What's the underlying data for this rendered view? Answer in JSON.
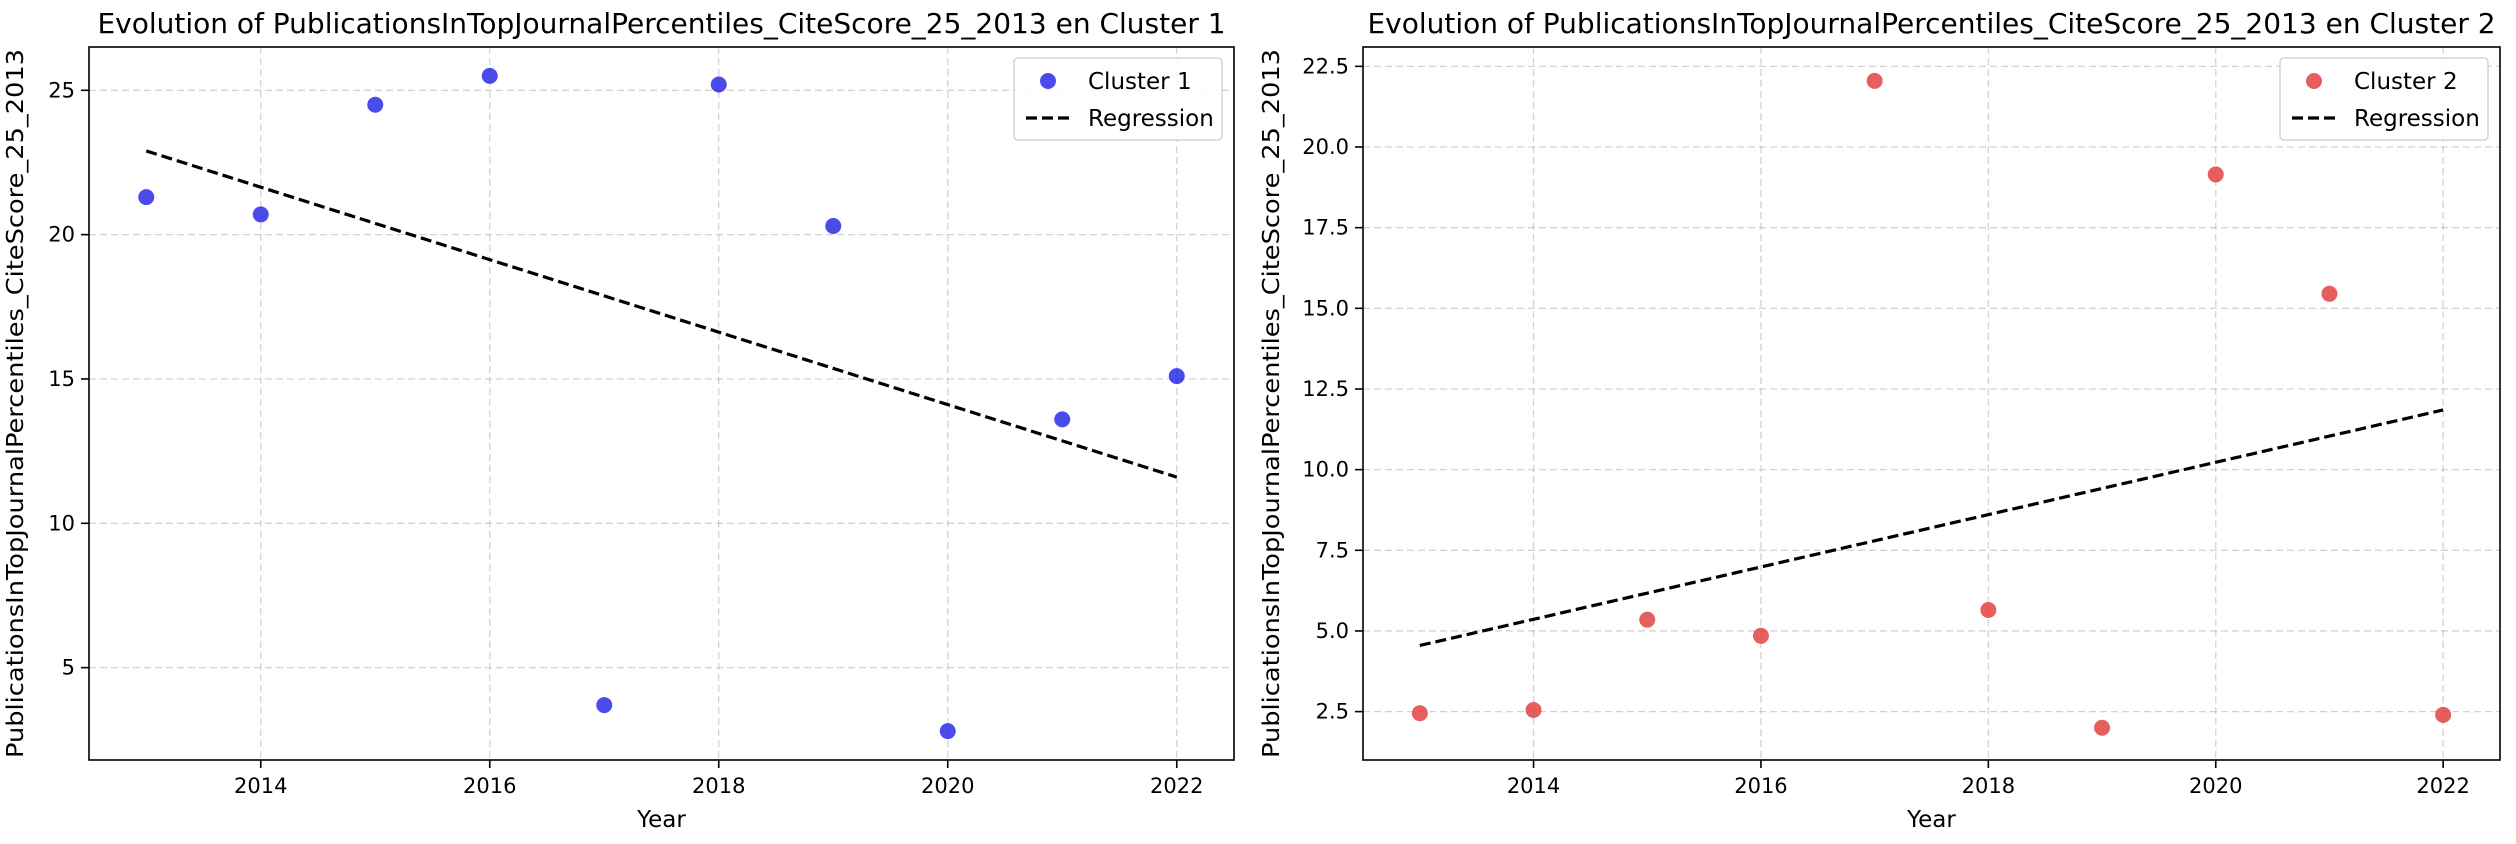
{
  "chart_data": [
    {
      "type": "scatter",
      "title": "Evolution of PublicationsInTopJournalPercentiles_CiteScore_25_2013 en Cluster 1",
      "xlabel": "Year",
      "ylabel": "PublicationsInTopJournalPercentiles_CiteScore_25_2013",
      "xlim": [
        2012.5,
        2022.5
      ],
      "ylim": [
        1.8,
        26.5
      ],
      "xticks": [
        2014,
        2016,
        2018,
        2020,
        2022
      ],
      "yticks": [
        5,
        10,
        15,
        20,
        25
      ],
      "ytick_labels": [
        "5",
        "10",
        "15",
        "20",
        "25"
      ],
      "grid": true,
      "legend_position": "top-right",
      "series": [
        {
          "name": "Cluster 1",
          "kind": "scatter",
          "color": "#2323e8",
          "x": [
            2013,
            2014,
            2015,
            2016,
            2017,
            2018,
            2019,
            2020,
            2021,
            2022
          ],
          "y": [
            21.3,
            20.7,
            24.5,
            25.5,
            3.7,
            25.2,
            20.3,
            2.8,
            13.6,
            15.1
          ]
        },
        {
          "name": "Regression",
          "kind": "line",
          "color": "#000000",
          "x": [
            2013,
            2022
          ],
          "y": [
            22.9,
            11.6
          ]
        }
      ]
    },
    {
      "type": "scatter",
      "title": "Evolution of PublicationsInTopJournalPercentiles_CiteScore_25_2013 en Cluster 2",
      "xlabel": "Year",
      "ylabel": "PublicationsInTopJournalPercentiles_CiteScore_25_2013",
      "xlim": [
        2012.5,
        2022.5
      ],
      "ylim": [
        1.0,
        23.1
      ],
      "xticks": [
        2014,
        2016,
        2018,
        2020,
        2022
      ],
      "yticks": [
        2.5,
        5.0,
        7.5,
        10.0,
        12.5,
        15.0,
        17.5,
        20.0,
        22.5
      ],
      "ytick_labels": [
        "2.5",
        "5.0",
        "7.5",
        "10.0",
        "12.5",
        "15.0",
        "17.5",
        "20.0",
        "22.5"
      ],
      "grid": true,
      "legend_position": "top-right",
      "series": [
        {
          "name": "Cluster 2",
          "kind": "scatter",
          "color": "#e03a3a",
          "x": [
            2013,
            2014,
            2015,
            2016,
            2017,
            2018,
            2019,
            2020,
            2021,
            2022
          ],
          "y": [
            2.45,
            2.55,
            5.35,
            4.85,
            22.05,
            5.65,
            2.0,
            19.15,
            15.45,
            2.4
          ]
        },
        {
          "name": "Regression",
          "kind": "line",
          "color": "#000000",
          "x": [
            2013,
            2022
          ],
          "y": [
            4.55,
            11.85
          ]
        }
      ]
    }
  ]
}
